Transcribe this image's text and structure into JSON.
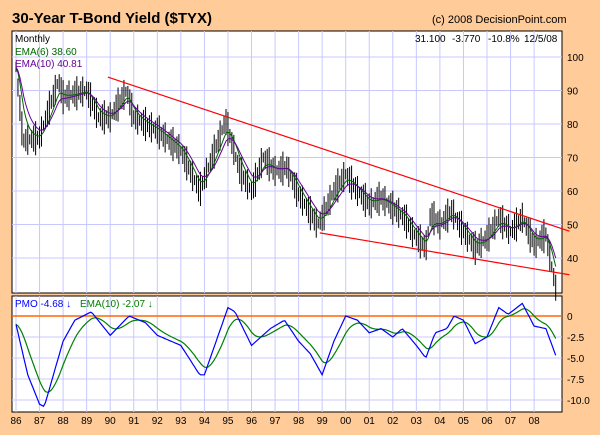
{
  "chart_data": [
    {
      "type": "line",
      "title": "30-Year T-Bond Yield ($TYX)",
      "copyright": "(c) 2008 DecisionPoint.com",
      "period": "Monthly",
      "quote": {
        "last": "31.100",
        "change": "-3.770",
        "pct": "-10.8%",
        "date": "12/5/08"
      },
      "legend": [
        {
          "label": "EMA(6) 38.60",
          "color": "#006600"
        },
        {
          "label": "EMA(10) 40.81",
          "color": "#660099"
        }
      ],
      "ylim": [
        30,
        107
      ],
      "yticks": [
        40,
        50,
        60,
        70,
        80,
        90,
        100
      ],
      "x": [
        1986.0,
        1986.3,
        1987.0,
        1987.8,
        1988.0,
        1989.0,
        1989.5,
        1990.0,
        1990.7,
        1991.0,
        1992.0,
        1993.0,
        1993.8,
        1994.9,
        1995.5,
        1996.0,
        1996.5,
        1997.0,
        1997.5,
        1998.0,
        1998.8,
        1999.0,
        1999.5,
        2000.0,
        2000.5,
        2001.0,
        2001.5,
        2002.0,
        2002.5,
        2002.8,
        2003.4,
        2003.6,
        2004.0,
        2004.5,
        2005.0,
        2005.5,
        2006.0,
        2006.5,
        2007.0,
        2007.5,
        2008.0,
        2008.5,
        2008.92
      ],
      "values": [
        97,
        75,
        76,
        93,
        88,
        90,
        82,
        82,
        90,
        82,
        78,
        72,
        60,
        81,
        66,
        60,
        70,
        66,
        67,
        59,
        50,
        52,
        60,
        65,
        60,
        56,
        58,
        55,
        52,
        48,
        43,
        53,
        50,
        54,
        48,
        43,
        46,
        52,
        48,
        52,
        44,
        47,
        31
      ],
      "trendlines": [
        {
          "name": "upper",
          "from": [
            1989.9,
            94
          ],
          "to": [
            2009.5,
            48
          ],
          "color": "#FF0000"
        },
        {
          "name": "lower",
          "from": [
            1998.9,
            47.5
          ],
          "to": [
            2009.5,
            35
          ],
          "color": "#FF0000"
        }
      ]
    },
    {
      "type": "line",
      "title": "PMO",
      "legend": [
        {
          "label": "PMO",
          "value": "-4.68",
          "arrow": "↓",
          "color": "#0000FF"
        },
        {
          "label": "EMA(10)",
          "value": "-2.07",
          "arrow": "↓",
          "color": "#008000"
        }
      ],
      "ylim": [
        -11.5,
        2.5
      ],
      "yticks": [
        "0",
        "-2.5",
        "-5.0",
        "-7.5",
        "-10.0"
      ],
      "ytick_values": [
        0,
        -2.5,
        -5,
        -7.5,
        -10
      ],
      "zero_line_color": "#FF6600",
      "x": [
        1986.0,
        1986.5,
        1987.0,
        1987.2,
        1988.0,
        1988.5,
        1989.2,
        1990.0,
        1990.8,
        1991.5,
        1992.0,
        1993.0,
        1993.8,
        1994.0,
        1995.0,
        1995.3,
        1996.0,
        1996.8,
        1997.4,
        1998.0,
        1998.5,
        1999.0,
        1999.5,
        2000.0,
        2000.5,
        2001.0,
        2001.5,
        2002.0,
        2002.4,
        2003.0,
        2003.4,
        2003.8,
        2004.3,
        2004.6,
        2005.0,
        2005.5,
        2006.0,
        2006.5,
        2006.9,
        2007.5,
        2008.0,
        2008.5,
        2008.92
      ],
      "values": [
        -1,
        -7,
        -10.5,
        -10.8,
        -3,
        -0.5,
        0.5,
        -2.3,
        0,
        -0.8,
        -2.3,
        -3.5,
        -7,
        -7,
        1,
        0.5,
        -3.5,
        -1.5,
        -0.5,
        -3,
        -4.5,
        -7,
        -3,
        0,
        -0.5,
        -2,
        -1.5,
        -2.5,
        -1.5,
        -3.5,
        -5,
        -2,
        -1.5,
        0,
        -0.5,
        -3.3,
        -2.5,
        1,
        0.2,
        1.5,
        -1.2,
        -1.5,
        -4.7
      ]
    }
  ],
  "xaxis": {
    "labels": [
      "86",
      "87",
      "88",
      "89",
      "90",
      "91",
      "92",
      "93",
      "94",
      "95",
      "96",
      "97",
      "98",
      "99",
      "00",
      "01",
      "02",
      "03",
      "04",
      "05",
      "06",
      "07",
      "08"
    ],
    "start_year": 1986
  }
}
